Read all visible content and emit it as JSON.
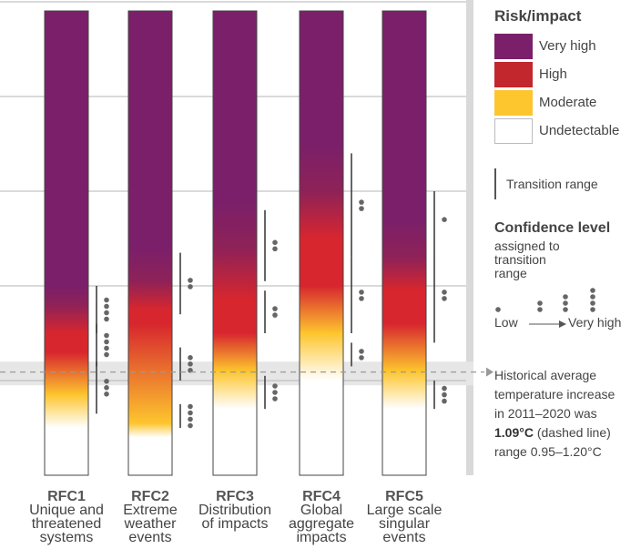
{
  "legend": {
    "risk_title": "Risk/impact",
    "levels": [
      {
        "label": "Very high",
        "color": "#7b1f6a"
      },
      {
        "label": "High",
        "color": "#c1272d"
      },
      {
        "label": "Moderate",
        "color": "#fdc52e"
      },
      {
        "label": "Undetectable",
        "color": "#ffffff"
      }
    ],
    "transition_label": "Transition range",
    "confidence_title": "Confidence level",
    "confidence_sub1": "assigned to",
    "confidence_sub2": "transition",
    "confidence_sub3": "range",
    "low_label": "Low",
    "veryhigh_label": "Very high",
    "hist_line1": "Historical average",
    "hist_line2": "temperature increase",
    "hist_line3": "in 2011–2020 was",
    "hist_bold": "1.09°C",
    "hist_line4_rest": " (dashed line)",
    "hist_line5": "range 0.95–1.20°C"
  },
  "chart_data": {
    "type": "bar",
    "categories": [
      "RFC1",
      "RFC2",
      "RFC3",
      "RFC4",
      "RFC5"
    ],
    "category_descriptions": [
      [
        "Unique and",
        "threatened",
        "systems"
      ],
      [
        "Extreme",
        "weather",
        "events"
      ],
      [
        "Distribution",
        "of impacts"
      ],
      [
        "Global",
        "aggregate",
        "impacts"
      ],
      [
        "Large scale",
        "singular",
        "events"
      ]
    ],
    "ylim": [
      0,
      5
    ],
    "historical_warming": 1.09,
    "historical_range": [
      0.95,
      1.2
    ],
    "colors": {
      "very_high": "#7b1f6a",
      "high": "#d7262e",
      "moderate": "#fdc52e",
      "undetectable": "#ffffff"
    },
    "series": [
      {
        "start_moderate": 0.5,
        "moderate_full": 0.85,
        "high": 1.3,
        "high_full": 1.5,
        "very_high": 1.8,
        "very_high_full": 2.0,
        "transitions": [
          {
            "from": 0.65,
            "to": 1.2,
            "dots": 3
          },
          {
            "from": 1.15,
            "to": 1.6,
            "dots": 4
          },
          {
            "from": 1.5,
            "to": 2.0,
            "dots": 4
          }
        ]
      },
      {
        "start_moderate": 0.4,
        "moderate_full": 0.55,
        "high": 1.6,
        "high_full": 1.75,
        "very_high": 2.05,
        "very_high_full": 2.4,
        "transitions": [
          {
            "from": 0.5,
            "to": 0.75,
            "dots": 4
          },
          {
            "from": 1.0,
            "to": 1.35,
            "dots": 3
          },
          {
            "from": 1.7,
            "to": 2.35,
            "dots": 2
          }
        ]
      },
      {
        "start_moderate": 0.7,
        "moderate_full": 1.1,
        "high": 1.5,
        "high_full": 1.85,
        "very_high": 2.4,
        "very_high_full": 2.9,
        "transitions": [
          {
            "from": 0.7,
            "to": 1.05,
            "dots": 3
          },
          {
            "from": 1.5,
            "to": 1.95,
            "dots": 2
          },
          {
            "from": 2.05,
            "to": 2.8,
            "dots": 2
          }
        ]
      },
      {
        "start_moderate": 1.0,
        "moderate_full": 1.5,
        "high": 2.0,
        "high_full": 2.5,
        "very_high": 3.0,
        "very_high_full": 3.5,
        "transitions": [
          {
            "from": 1.15,
            "to": 1.4,
            "dots": 2
          },
          {
            "from": 1.5,
            "to": 2.3,
            "dots": 2
          },
          {
            "from": 2.3,
            "to": 3.4,
            "dots": 2
          }
        ]
      },
      {
        "start_moderate": 0.7,
        "moderate_full": 1.1,
        "high": 1.6,
        "high_full": 1.95,
        "very_high": 2.3,
        "very_high_full": 2.7,
        "transitions": [
          {
            "from": 0.7,
            "to": 1.0,
            "dots": 3
          },
          {
            "from": 1.4,
            "to": 2.4,
            "dots": 2
          },
          {
            "from": 2.4,
            "to": 3.0,
            "dots": 1
          }
        ]
      }
    ]
  }
}
